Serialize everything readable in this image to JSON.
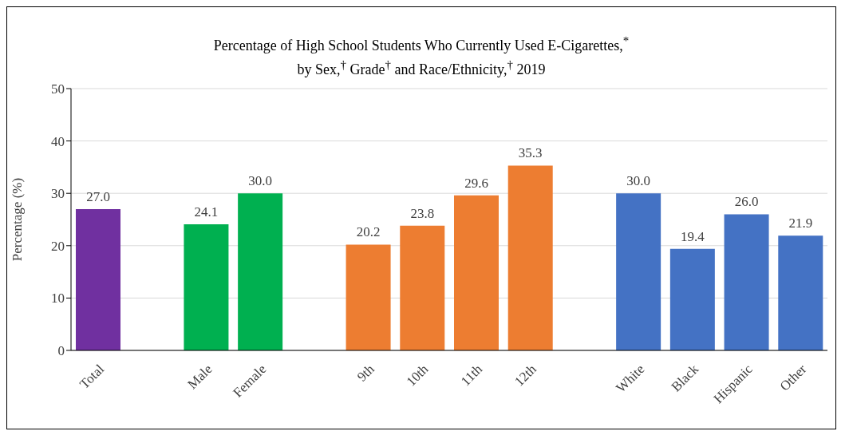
{
  "chart_data": {
    "type": "bar",
    "title": "Percentage of High School Students Who Currently Used E-Cigarettes,$^{*}$\nby Sex,$^{†}$ Grade$^{†}$ and Race/Ethnicity,$^{†}$ 2019",
    "ylabel": "Percentage (%)",
    "categories": [
      "Total",
      null,
      "Male",
      "Female",
      null,
      "9th",
      "10th",
      "11th",
      "12th",
      null,
      "White",
      "Black",
      "Hispanic",
      "Other"
    ],
    "values": [
      27.0,
      null,
      24.1,
      30.0,
      null,
      20.2,
      23.8,
      29.6,
      35.3,
      null,
      30.0,
      19.4,
      26.0,
      21.9
    ],
    "colors": [
      "#7030a0",
      null,
      "#00b050",
      "#00b050",
      null,
      "#ed7d31",
      "#ed7d31",
      "#ed7d31",
      "#ed7d31",
      null,
      "#4472c4",
      "#4472c4",
      "#4472c4",
      "#4472c4"
    ],
    "value_labels": [
      "27.0",
      null,
      "24.1",
      "30.0",
      null,
      "20.2",
      "23.8",
      "29.6",
      "35.3",
      null,
      "30.0",
      "19.4",
      "26.0",
      "21.9"
    ],
    "ylim": [
      0,
      50
    ],
    "yticks": [
      0,
      10,
      20,
      30,
      40,
      50
    ],
    "grid": "y"
  }
}
